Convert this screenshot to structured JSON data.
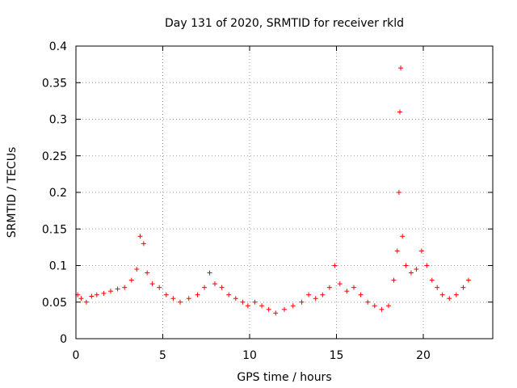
{
  "chart_data": {
    "type": "scatter",
    "title": "Day 131 of 2020, SRMTID for receiver rkld",
    "xlabel": "GPS time / hours",
    "ylabel": "SRMTID / TECUs",
    "xlim": [
      0,
      24
    ],
    "ylim": [
      0,
      0.4
    ],
    "x_ticks": [
      0,
      5,
      10,
      15,
      20
    ],
    "x_tick_labels": [
      "0",
      "5",
      "10",
      "15",
      "20"
    ],
    "y_ticks": [
      0,
      0.05,
      0.1,
      0.15,
      0.2,
      0.25,
      0.3,
      0.35,
      0.4
    ],
    "y_tick_labels": [
      "0",
      "0.05",
      "0.1",
      "0.15",
      "0.2",
      "0.25",
      "0.3",
      "0.35",
      "0.4"
    ],
    "grid": true,
    "marker": "+",
    "series": [
      {
        "name": "SRMTID",
        "color": "#ff0000",
        "x": [
          0.1,
          0.3,
          0.6,
          0.9,
          1.2,
          1.6,
          2.0,
          2.4,
          2.8,
          3.2,
          3.5,
          3.7,
          3.9,
          4.1,
          4.4,
          4.8,
          5.2,
          5.6,
          6.0,
          6.5,
          7.0,
          7.4,
          7.7,
          8.0,
          8.4,
          8.8,
          9.2,
          9.6,
          9.9,
          10.3,
          10.7,
          11.1,
          11.5,
          12.0,
          12.5,
          13.0,
          13.4,
          13.8,
          14.2,
          14.6,
          14.9,
          15.2,
          15.6,
          16.0,
          16.4,
          16.8,
          17.2,
          17.6,
          18.0,
          18.3,
          18.5,
          18.6,
          18.65,
          18.7,
          18.8,
          19.0,
          19.3,
          19.6,
          19.9,
          20.2,
          20.5,
          20.8,
          21.1,
          21.5,
          21.9,
          22.3,
          22.6
        ],
        "y": [
          0.06,
          0.055,
          0.05,
          0.058,
          0.06,
          0.062,
          0.065,
          0.068,
          0.07,
          0.08,
          0.095,
          0.14,
          0.13,
          0.09,
          0.075,
          0.07,
          0.06,
          0.055,
          0.05,
          0.055,
          0.06,
          0.07,
          0.09,
          0.075,
          0.07,
          0.06,
          0.055,
          0.05,
          0.045,
          0.05,
          0.045,
          0.04,
          0.035,
          0.04,
          0.045,
          0.05,
          0.06,
          0.055,
          0.06,
          0.07,
          0.1,
          0.075,
          0.065,
          0.07,
          0.06,
          0.05,
          0.045,
          0.04,
          0.045,
          0.08,
          0.12,
          0.2,
          0.31,
          0.37,
          0.14,
          0.1,
          0.09,
          0.095,
          0.12,
          0.1,
          0.08,
          0.07,
          0.06,
          0.055,
          0.06,
          0.07,
          0.08
        ]
      }
    ]
  }
}
